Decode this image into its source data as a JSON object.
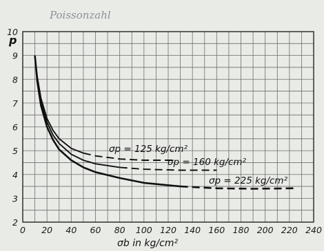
{
  "chart_data": {
    "type": "line",
    "handwritten_note": "Poissonzahl",
    "ylabel": "p",
    "xlabel": "σb in kg/cm²",
    "xlim": [
      0,
      240
    ],
    "ylim": [
      2,
      10
    ],
    "xticks": [
      "0",
      "20",
      "40",
      "60",
      "80",
      "100",
      "120",
      "140",
      "160",
      "180",
      "200",
      "220",
      "240"
    ],
    "yticks": [
      "2",
      "3",
      "4",
      "5",
      "6",
      "7",
      "8",
      "9",
      "10"
    ],
    "grid": true,
    "series": [
      {
        "name": "σp = 125 kg/cm²",
        "solid_until_x": 50,
        "x": [
          10,
          12,
          15,
          20,
          25,
          30,
          40,
          50,
          60,
          80,
          100,
          125
        ],
        "y": [
          9,
          8.1,
          7.2,
          6.35,
          5.85,
          5.5,
          5.1,
          4.9,
          4.78,
          4.65,
          4.6,
          4.6
        ]
      },
      {
        "name": "σp = 160 kg/cm²",
        "solid_until_x": 80,
        "x": [
          10,
          12,
          15,
          20,
          25,
          30,
          40,
          50,
          60,
          80,
          100,
          130,
          160
        ],
        "y": [
          9,
          8.0,
          7.05,
          6.2,
          5.65,
          5.3,
          4.85,
          4.6,
          4.45,
          4.3,
          4.22,
          4.18,
          4.18
        ]
      },
      {
        "name": "σp = 225 kg/cm²",
        "solid_until_x": 130,
        "x": [
          10,
          12,
          15,
          20,
          25,
          30,
          40,
          50,
          60,
          80,
          100,
          130,
          160,
          190,
          225
        ],
        "y": [
          9,
          7.9,
          6.9,
          6.0,
          5.45,
          5.05,
          4.6,
          4.3,
          4.1,
          3.85,
          3.65,
          3.5,
          3.42,
          3.4,
          3.42
        ]
      }
    ]
  }
}
